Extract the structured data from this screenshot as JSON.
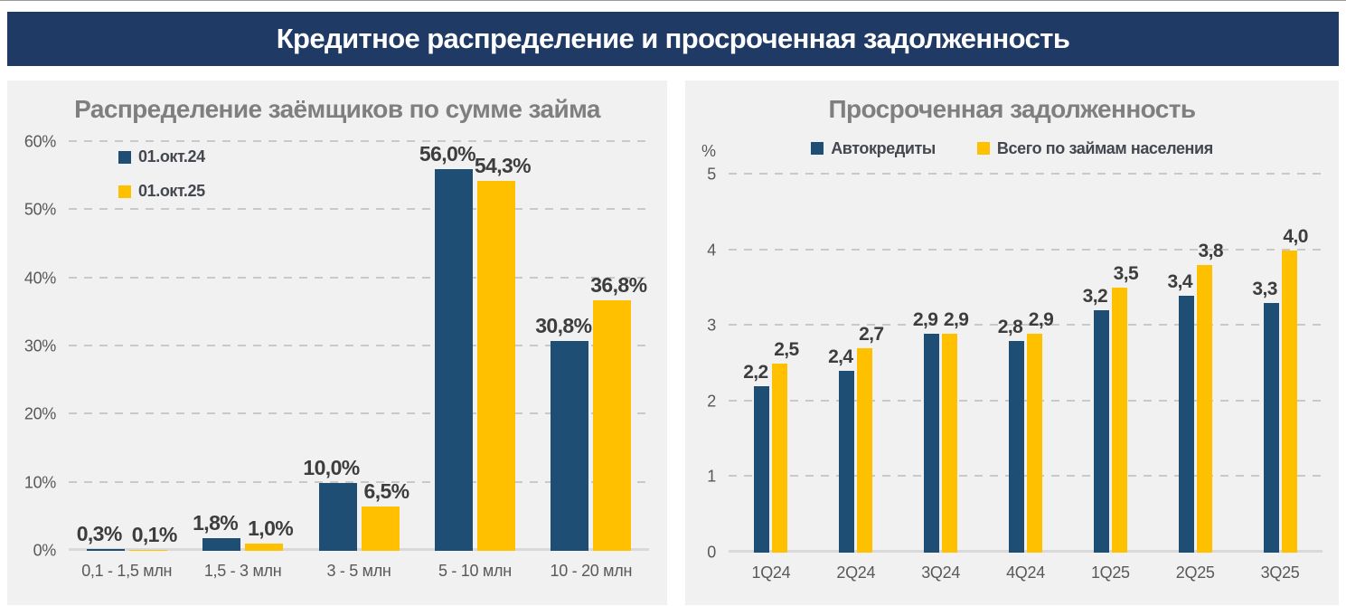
{
  "header": {
    "title": "Кредитное распределение и просроченная задолженность"
  },
  "colors": {
    "header_bg": "#203A66",
    "panel_bg": "#F1F1F2",
    "series_blue": "#1F4E75",
    "series_yellow": "#FFC000",
    "grid": "#C9C9C9",
    "axis_line": "#D9D9D9",
    "chart_title": "#7F7F7F",
    "tick_label": "#595959",
    "data_label": "#3D3D3D",
    "legend_text": "#44474F"
  },
  "chart_data": [
    {
      "type": "bar",
      "title": "Распределение заёмщиков по сумме займа",
      "categories": [
        "0,1 - 1,5 млн",
        "1,5 - 3 млн",
        "3 - 5 млн",
        "5 - 10 млн",
        "10 - 20 млн"
      ],
      "series": [
        {
          "name": "01.окт.24",
          "color": "#1F4E75",
          "values": [
            0.3,
            1.8,
            10.0,
            56.0,
            30.8
          ],
          "labels": [
            "0,3%",
            "1,8%",
            "10,0%",
            "56,0%",
            "30,8%"
          ]
        },
        {
          "name": "01.окт.25",
          "color": "#FFC000",
          "values": [
            0.1,
            1.0,
            6.5,
            54.3,
            36.8
          ],
          "labels": [
            "0,1%",
            "1,0%",
            "6,5%",
            "54,3%",
            "36,8%"
          ]
        }
      ],
      "ylim": [
        0,
        60
      ],
      "yticks": [
        {
          "value": 0,
          "label": "0%"
        },
        {
          "value": 10,
          "label": "10%"
        },
        {
          "value": 20,
          "label": "20%"
        },
        {
          "value": 30,
          "label": "30%"
        },
        {
          "value": 40,
          "label": "40%"
        },
        {
          "value": 50,
          "label": "50%"
        },
        {
          "value": 60,
          "label": "60%"
        }
      ],
      "y_unit": "",
      "grid": "dashed",
      "legend_position": "top-left-vertical"
    },
    {
      "type": "bar",
      "title": "Просроченная задолженность",
      "categories": [
        "1Q24",
        "2Q24",
        "3Q24",
        "4Q24",
        "1Q25",
        "2Q25",
        "3Q25"
      ],
      "series": [
        {
          "name": "Автокредиты",
          "color": "#1F4E75",
          "values": [
            2.2,
            2.4,
            2.9,
            2.8,
            3.2,
            3.4,
            3.3
          ],
          "labels": [
            "2,2",
            "2,4",
            "2,9",
            "2,8",
            "3,2",
            "3,4",
            "3,3"
          ]
        },
        {
          "name": "Всего по займам населения",
          "color": "#FFC000",
          "values": [
            2.5,
            2.7,
            2.9,
            2.9,
            3.5,
            3.8,
            4.0
          ],
          "labels": [
            "2,5",
            "2,7",
            "2,9",
            "2,9",
            "3,5",
            "3,8",
            "4,0"
          ]
        }
      ],
      "ylim": [
        0,
        5
      ],
      "yticks": [
        {
          "value": 0,
          "label": "0"
        },
        {
          "value": 1,
          "label": "1"
        },
        {
          "value": 2,
          "label": "2"
        },
        {
          "value": 3,
          "label": "3"
        },
        {
          "value": 4,
          "label": "4"
        },
        {
          "value": 5,
          "label": "5"
        }
      ],
      "y_unit": "%",
      "grid": "dashed",
      "legend_position": "top-horizontal"
    }
  ]
}
